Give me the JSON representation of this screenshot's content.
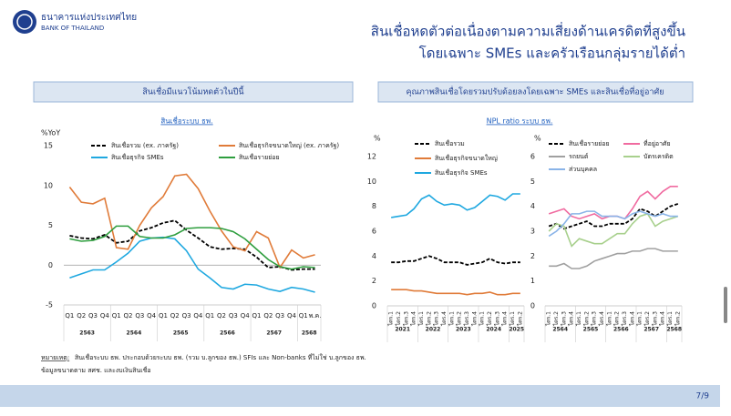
{
  "header": {
    "logo_th": "ธนาคารแห่งประเทศไทย",
    "logo_en": "BANK OF THAILAND",
    "title_lines": [
      "สินเชื่อหดตัวต่อเนื่องตามความเสี่ยงด้านเครดิตที่สูงขึ้น",
      "โดยเฉพาะ SMEs และครัวเรือนกลุ่มรายได้ต่ำ"
    ]
  },
  "panels": [
    "สินเชื่อมีแนวโน้มหดตัวในปีนี้",
    "คุณภาพสินเชื่อโดยรวมปรับด้อยลงโดยเฉพาะ SMEs และสินเชื่อที่อยู่อาศัย"
  ],
  "chart_data": [
    {
      "type": "line",
      "title": "สินเชื่อระบบ ธพ.",
      "y_label": "%YoY",
      "zero_line": true,
      "categories": [
        "Q1",
        "Q2",
        "Q3",
        "Q4",
        "Q1",
        "Q2",
        "Q3",
        "Q4",
        "Q1",
        "Q2",
        "Q3",
        "Q4",
        "Q1",
        "Q2",
        "Q3",
        "Q4",
        "Q1",
        "Q2",
        "Q3",
        "Q4",
        "Q1",
        "พ.ค."
      ],
      "category_groups": [
        "2563",
        "2564",
        "2565",
        "2566",
        "2567",
        "2568"
      ],
      "ylim": [
        -5,
        15
      ],
      "yticks": [
        -5,
        0,
        5,
        10,
        15
      ],
      "series": [
        {
          "name": "สินเชื่อรวม (ex. ภาครัฐ)",
          "color": "#000000",
          "dash": true,
          "values": [
            3.7,
            3.4,
            3.3,
            3.8,
            2.8,
            3.0,
            4.3,
            4.7,
            5.3,
            5.6,
            4.4,
            3.4,
            2.3,
            2.0,
            2.1,
            2.0,
            1.0,
            -0.3,
            -0.2,
            -0.6,
            -0.5,
            -0.5
          ]
        },
        {
          "name": "สินเชื่อธุรกิจขนาดใหญ่ (ex. ภาครัฐ)",
          "color": "#e07b39",
          "dash": false,
          "values": [
            9.8,
            7.9,
            7.7,
            8.4,
            2.2,
            2.0,
            5.0,
            7.2,
            8.6,
            11.2,
            11.4,
            9.6,
            6.8,
            4.3,
            2.3,
            1.8,
            4.2,
            3.4,
            -0.3,
            1.9,
            0.9,
            1.3
          ]
        },
        {
          "name": "สินเชื่อธุรกิจ SMEs",
          "color": "#1fa8e0",
          "dash": false,
          "values": [
            -1.6,
            -1.1,
            -0.6,
            -0.6,
            0.4,
            1.5,
            3.0,
            3.4,
            3.5,
            3.3,
            1.8,
            -0.5,
            -1.6,
            -2.8,
            -3.0,
            -2.4,
            -2.5,
            -3.0,
            -3.3,
            -2.8,
            -3.0,
            -3.4
          ]
        },
        {
          "name": "สินเชื่อรายย่อย",
          "color": "#2e9e3e",
          "dash": false,
          "values": [
            3.3,
            3.0,
            3.1,
            3.6,
            4.9,
            4.9,
            3.6,
            3.4,
            3.4,
            3.8,
            4.6,
            4.7,
            4.7,
            4.6,
            4.2,
            3.3,
            2.0,
            0.7,
            -0.2,
            -0.5,
            -0.2,
            -0.3
          ]
        }
      ]
    },
    {
      "type": "line",
      "title": "NPL ratio ระบบ ธพ.",
      "y_label": "%",
      "zero_line": false,
      "categories": [
        "ไตร.1",
        "ไตร.2",
        "ไตร.3",
        "ไตร.4",
        "ไตร.1",
        "ไตร.2",
        "ไตร.3",
        "ไตร.4",
        "ไตร.1",
        "ไตร.2",
        "ไตร.3",
        "ไตร.4",
        "ไตร.1",
        "ไตร.2",
        "ไตร.3",
        "ไตร.4",
        "ไตร.1",
        "ไตร.2"
      ],
      "category_groups": [
        "2021",
        "2022",
        "2023",
        "2024",
        "2025"
      ],
      "ylim": [
        0,
        12
      ],
      "yticks": [
        0,
        2,
        4,
        6,
        8,
        10,
        12
      ],
      "series": [
        {
          "name": "สินเชื่อรวม",
          "color": "#000000",
          "dash": true,
          "values": [
            3.5,
            3.5,
            3.6,
            3.6,
            3.8,
            4.0,
            3.8,
            3.5,
            3.5,
            3.5,
            3.3,
            3.4,
            3.5,
            3.8,
            3.5,
            3.4,
            3.5,
            3.5
          ]
        },
        {
          "name": "สินเชื่อธุรกิจขนาดใหญ่",
          "color": "#e07b39",
          "dash": false,
          "values": [
            1.3,
            1.3,
            1.3,
            1.2,
            1.2,
            1.1,
            1.0,
            1.0,
            1.0,
            1.0,
            0.9,
            1.0,
            1.0,
            1.1,
            0.9,
            0.9,
            1.0,
            1.0
          ]
        },
        {
          "name": "สินเชื่อธุรกิจ SMEs",
          "color": "#1fa8e0",
          "dash": false,
          "values": [
            7.1,
            7.2,
            7.3,
            7.8,
            8.6,
            8.9,
            8.4,
            8.1,
            8.2,
            8.1,
            7.7,
            7.9,
            8.4,
            8.9,
            8.8,
            8.5,
            9.0,
            9.0
          ]
        }
      ]
    },
    {
      "type": "line",
      "y_label": "%",
      "zero_line": false,
      "categories": [
        "ไตร.1",
        "ไตร.2",
        "ไตร.3",
        "ไตร.4",
        "ไตร.1",
        "ไตร.2",
        "ไตร.3",
        "ไตร.4",
        "ไตร.1",
        "ไตร.2",
        "ไตร.3",
        "ไตร.4",
        "ไตร.1",
        "ไตร.2",
        "ไตร.3",
        "ไตร.4",
        "ไตร.1",
        "ไตร.2"
      ],
      "category_groups": [
        "2564",
        "2565",
        "2566",
        "2567",
        "2568"
      ],
      "ylim": [
        0,
        6
      ],
      "yticks": [
        0,
        1,
        2,
        3,
        4,
        5,
        6
      ],
      "series": [
        {
          "name": "สินเชื่อรายย่อย",
          "color": "#000000",
          "dash": true,
          "values": [
            3.2,
            3.3,
            3.1,
            3.2,
            3.3,
            3.4,
            3.2,
            3.2,
            3.3,
            3.3,
            3.3,
            3.5,
            3.9,
            3.8,
            3.6,
            3.8,
            4.0,
            4.1
          ]
        },
        {
          "name": "ที่อยู่อาศัย",
          "color": "#f06ba0",
          "dash": false,
          "values": [
            3.7,
            3.8,
            3.9,
            3.6,
            3.5,
            3.6,
            3.7,
            3.5,
            3.6,
            3.6,
            3.5,
            3.9,
            4.4,
            4.6,
            4.3,
            4.6,
            4.8,
            4.8
          ]
        },
        {
          "name": "รถยนต์",
          "color": "#a0a0a0",
          "dash": false,
          "values": [
            1.6,
            1.6,
            1.7,
            1.5,
            1.5,
            1.6,
            1.8,
            1.9,
            2.0,
            2.1,
            2.1,
            2.2,
            2.2,
            2.3,
            2.3,
            2.2,
            2.2,
            2.2
          ]
        },
        {
          "name": "บัตรเครดิต",
          "color": "#a8d08d",
          "dash": false,
          "values": [
            3.0,
            3.3,
            3.2,
            2.4,
            2.7,
            2.6,
            2.5,
            2.5,
            2.7,
            2.9,
            2.9,
            3.3,
            3.6,
            3.7,
            3.2,
            3.4,
            3.5,
            3.6
          ]
        },
        {
          "name": "ส่วนบุคคล",
          "color": "#8ab4e8",
          "dash": false,
          "values": [
            2.8,
            3.0,
            3.3,
            3.7,
            3.7,
            3.8,
            3.8,
            3.6,
            3.6,
            3.6,
            3.5,
            3.7,
            3.8,
            3.7,
            3.6,
            3.7,
            3.6,
            3.6
          ]
        }
      ]
    }
  ],
  "footnote": {
    "label": "หมายเหตุ:",
    "lines": [
      "สินเชื่อระบบ ธพ. ประกอบด้วยระบบ ธพ. (รวม บ.ลูกของ ธพ.) SFIs และ Non-banks ที่ไม่ใช่ บ.ลูกของ ธพ.",
      "ข้อมูลขนาดตาม สศช. และงบเงินสินเชื่อ"
    ]
  },
  "page_number": "7/9"
}
